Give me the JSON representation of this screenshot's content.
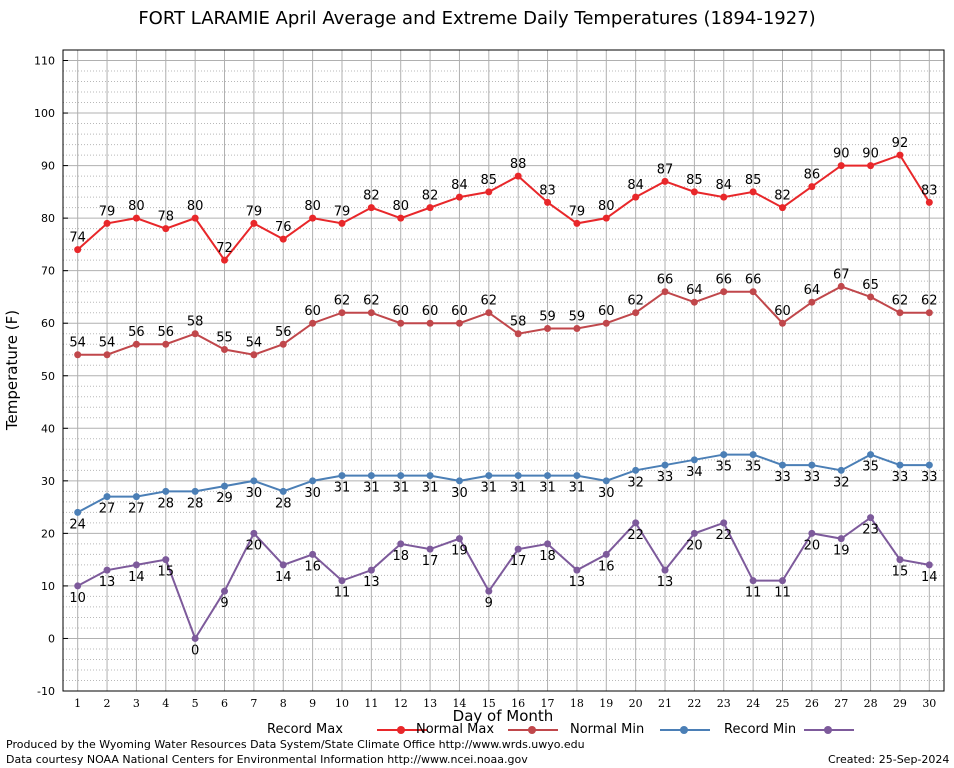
{
  "chart_data": {
    "type": "line",
    "title": "FORT LARAMIE April Average and Extreme Daily Temperatures (1894-1927)",
    "xlabel": "Day of Month",
    "ylabel": "Temperature (F)",
    "x": [
      1,
      2,
      3,
      4,
      5,
      6,
      7,
      8,
      9,
      10,
      11,
      12,
      13,
      14,
      15,
      16,
      17,
      18,
      19,
      20,
      21,
      22,
      23,
      24,
      25,
      26,
      27,
      28,
      29,
      30
    ],
    "xlim": [
      0.5,
      30.5
    ],
    "ylim": [
      -10,
      112
    ],
    "yticks": [
      -10,
      0,
      10,
      20,
      30,
      40,
      50,
      60,
      70,
      80,
      90,
      100,
      110
    ],
    "grid": true,
    "legend_position": "bottom",
    "series": [
      {
        "name": "Record Max",
        "color": "#e8272a",
        "label_side": "above",
        "values": [
          74,
          79,
          80,
          78,
          80,
          72,
          79,
          76,
          80,
          79,
          82,
          80,
          82,
          84,
          85,
          88,
          83,
          79,
          80,
          84,
          87,
          85,
          84,
          85,
          82,
          86,
          90,
          90,
          92,
          83
        ]
      },
      {
        "name": "Normal Max",
        "color": "#c0474b",
        "label_side": "above",
        "values": [
          54,
          54,
          56,
          56,
          58,
          55,
          54,
          56,
          60,
          62,
          62,
          60,
          60,
          60,
          62,
          58,
          59,
          59,
          60,
          62,
          66,
          64,
          66,
          66,
          60,
          64,
          67,
          65,
          62,
          62
        ]
      },
      {
        "name": "Normal Min",
        "color": "#4b7fb6",
        "label_side": "below",
        "values": [
          24,
          27,
          27,
          28,
          28,
          29,
          30,
          28,
          30,
          31,
          31,
          31,
          31,
          30,
          31,
          31,
          31,
          31,
          30,
          32,
          33,
          34,
          35,
          35,
          33,
          33,
          32,
          35,
          33,
          33
        ]
      },
      {
        "name": "Record Min",
        "color": "#7d5a9b",
        "label_side": "below",
        "values": [
          10,
          13,
          14,
          15,
          0,
          9,
          20,
          14,
          16,
          11,
          13,
          18,
          17,
          19,
          9,
          17,
          18,
          13,
          16,
          22,
          13,
          20,
          22,
          11,
          11,
          20,
          19,
          23,
          15,
          14
        ]
      }
    ]
  },
  "footer": {
    "produced_by": "Produced by the Wyoming Water Resources Data System/State Climate Office http://www.wrds.uwyo.edu",
    "courtesy": "Data courtesy NOAA National Centers for Environmental Information http://www.ncei.noaa.gov",
    "created": "Created:  25-Sep-2024"
  }
}
